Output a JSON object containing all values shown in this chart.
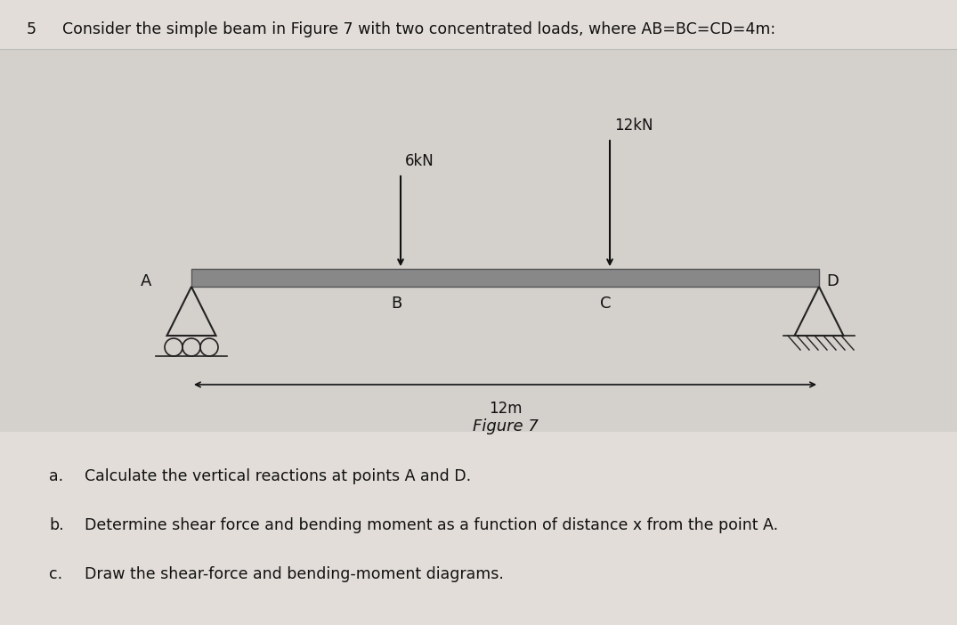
{
  "title_number": "5",
  "title_text": "Consider the simple beam in Figure 7 with two concentrated loads, where AB=BC=CD=4m:",
  "bg_gray": "#d4d0cb",
  "page_bg": "#e2ddd8",
  "beam_color": "#888888",
  "beam_edge": "#555555",
  "arrow_color": "#111111",
  "text_color": "#111111",
  "support_color": "#222222",
  "load_6kN_label": "6kN",
  "load_12kN_label": "12kN",
  "label_A": "A",
  "label_B": "B",
  "label_C": "C",
  "label_D": "D",
  "span_label": "12m",
  "figure_label": "Figure 7",
  "q_items": [
    {
      "letter": "a.",
      "text": "Calculate the vertical reactions at points A and D."
    },
    {
      "letter": "b.",
      "text": "Determine shear force and bending moment as a function of distance x from the point A."
    },
    {
      "letter": "c.",
      "text": "Draw the shear-force and bending-moment diagrams."
    }
  ],
  "title_fontsize": 12.5,
  "label_fontsize": 13,
  "annot_fontsize": 11,
  "question_fontsize": 12.5
}
